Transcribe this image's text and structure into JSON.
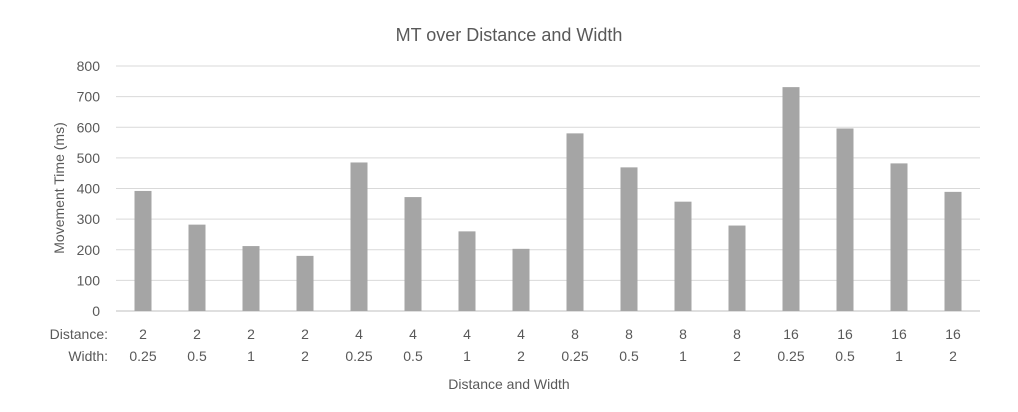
{
  "chart_data": {
    "type": "bar",
    "title": "MT over Distance and Width",
    "xlabel": "Distance and Width",
    "ylabel": "Movement Time (ms)",
    "ylim": [
      0,
      800
    ],
    "yticks": [
      0,
      100,
      200,
      300,
      400,
      500,
      600,
      700,
      800
    ],
    "grid": true,
    "category_rows": [
      {
        "label": "Distance:",
        "values": [
          "2",
          "2",
          "2",
          "2",
          "4",
          "4",
          "4",
          "4",
          "8",
          "8",
          "8",
          "8",
          "16",
          "16",
          "16",
          "16"
        ]
      },
      {
        "label": "Width:",
        "values": [
          "0.25",
          "0.5",
          "1",
          "2",
          "0.25",
          "0.5",
          "1",
          "2",
          "0.25",
          "0.5",
          "1",
          "2",
          "0.25",
          "0.5",
          "1",
          "2"
        ]
      }
    ],
    "series": [
      {
        "values": [
          392,
          282,
          212,
          180,
          485,
          372,
          260,
          203,
          580,
          469,
          357,
          279,
          731,
          596,
          482,
          389
        ]
      }
    ],
    "colors": {
      "bar": "#a5a5a5",
      "grid": "#d9d9d9",
      "text": "#595959"
    }
  }
}
